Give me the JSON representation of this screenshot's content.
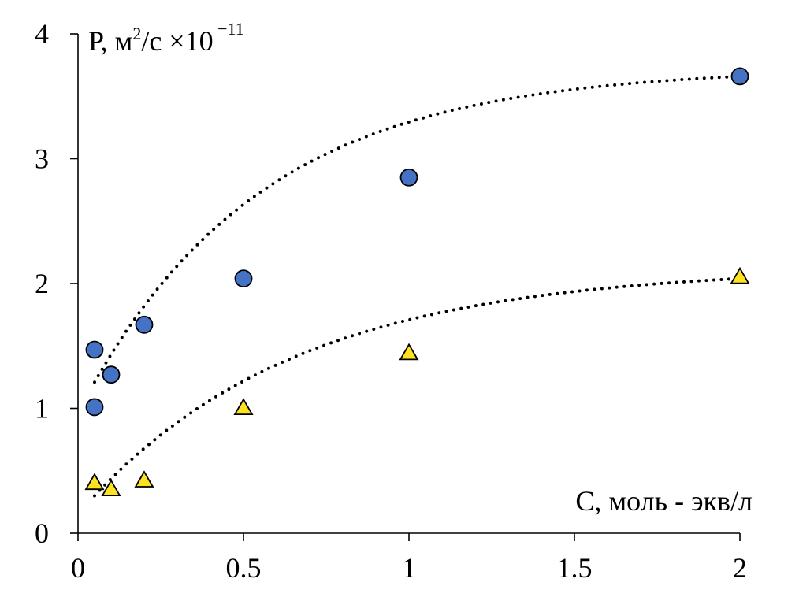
{
  "chart_data": {
    "type": "scatter",
    "xlabel": "С, моль - экв/л",
    "ylabel": {
      "main": "Р, м",
      "sup1": "2",
      "mid": "/с ×10",
      "sup2": " −11"
    },
    "xlim": [
      0,
      2
    ],
    "ylim": [
      0,
      4
    ],
    "xticks": [
      0,
      0.5,
      1,
      1.5,
      2
    ],
    "xtick_labels": [
      "0",
      "0.5",
      "1",
      "1.5",
      "2"
    ],
    "yticks": [
      0,
      1,
      2,
      3,
      4
    ],
    "ytick_labels": [
      "0",
      "1",
      "2",
      "3",
      "4"
    ],
    "grid": false,
    "series": [
      {
        "marker": "circle",
        "color": "#4472C4",
        "points": [
          {
            "x": 0.05,
            "y": 1.47
          },
          {
            "x": 0.05,
            "y": 1.01
          },
          {
            "x": 0.1,
            "y": 1.27
          },
          {
            "x": 0.2,
            "y": 1.67
          },
          {
            "x": 0.5,
            "y": 2.04
          },
          {
            "x": 1.0,
            "y": 2.85
          },
          {
            "x": 2.0,
            "y": 3.66
          }
        ],
        "trendline": {
          "style": "dotted",
          "color": "#000000",
          "from": [
            0.05,
            1.21
          ],
          "to": [
            2.0,
            3.66
          ]
        }
      },
      {
        "marker": "triangle",
        "color": "#FFE21F",
        "points": [
          {
            "x": 0.05,
            "y": 0.4
          },
          {
            "x": 0.1,
            "y": 0.35
          },
          {
            "x": 0.2,
            "y": 0.42
          },
          {
            "x": 0.5,
            "y": 1.0
          },
          {
            "x": 1.0,
            "y": 1.44
          },
          {
            "x": 2.0,
            "y": 2.05
          }
        ],
        "trendline": {
          "style": "dotted",
          "color": "#000000",
          "from": [
            0.05,
            0.3
          ],
          "to": [
            2.0,
            2.04
          ]
        }
      }
    ]
  }
}
